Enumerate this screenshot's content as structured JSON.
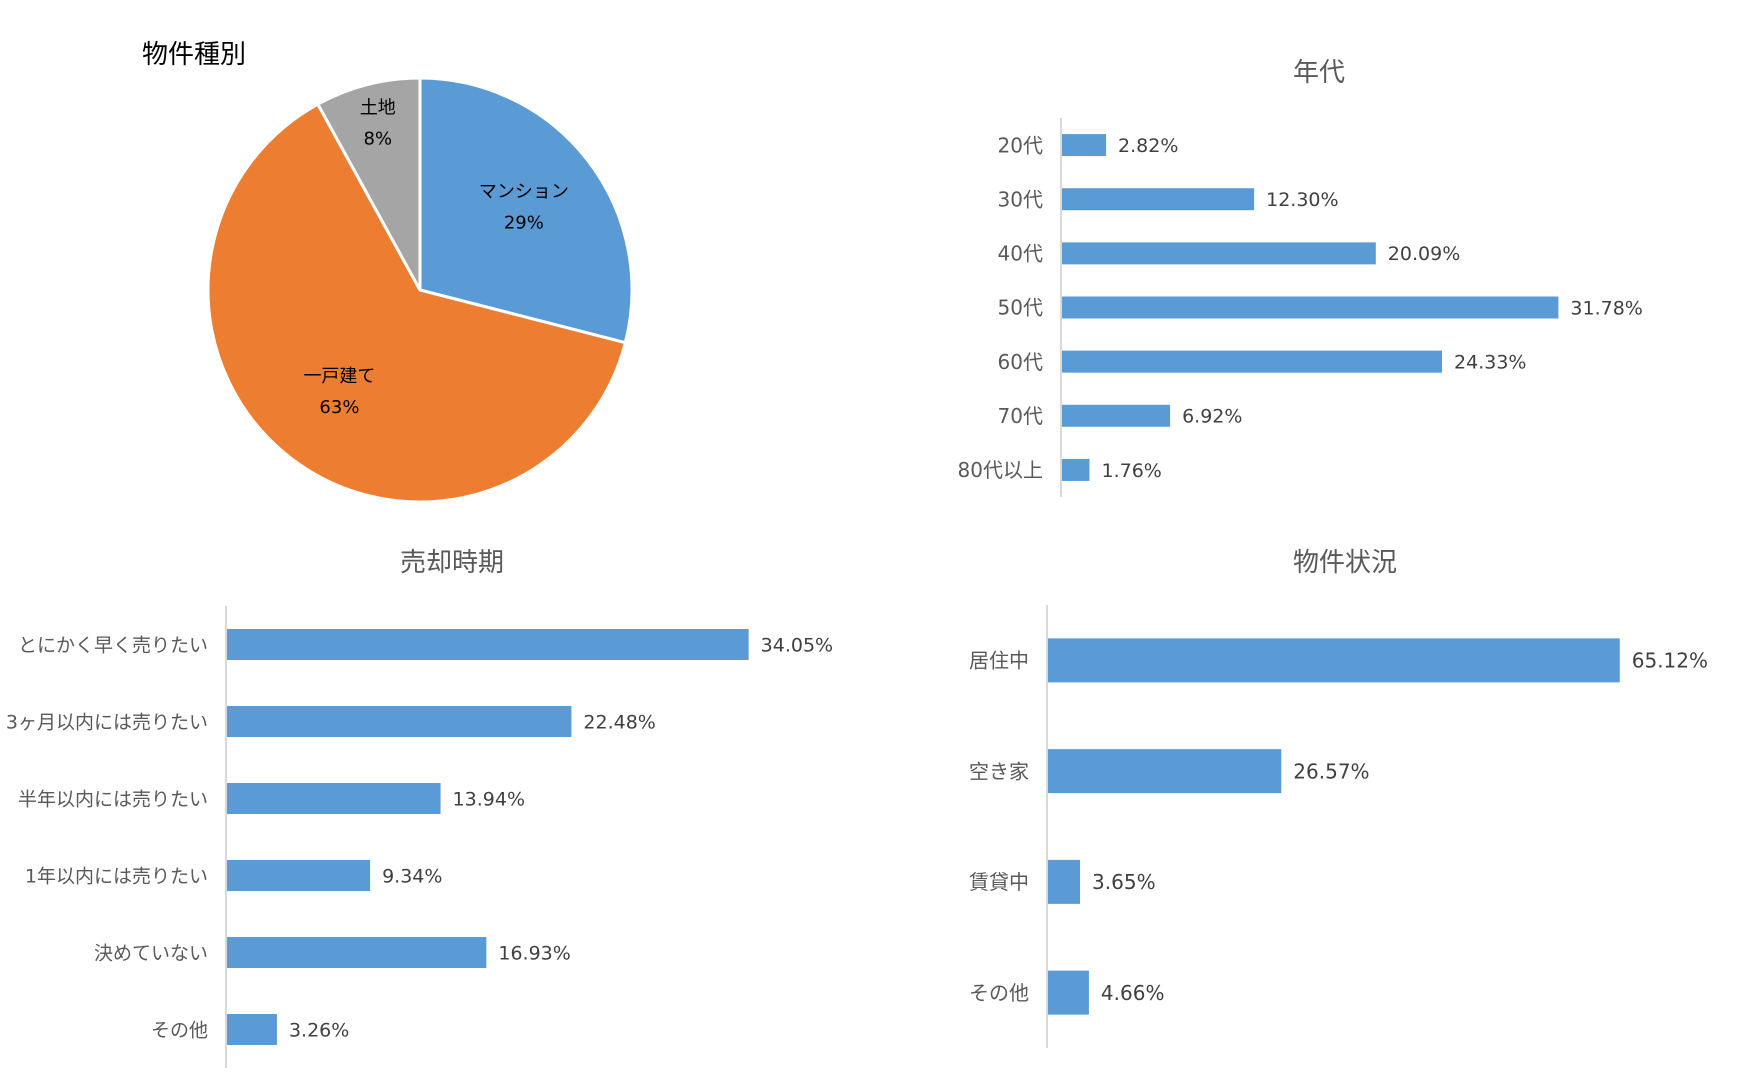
{
  "colors": {
    "bar": "#5b9bd5",
    "axis": "#d9d9d9",
    "label": "#595959",
    "value": "#404040",
    "pie": [
      "#5b9bd5",
      "#ed7d31",
      "#a5a5a5"
    ]
  },
  "chart_data": [
    {
      "type": "pie",
      "title": "物件種別",
      "slices": [
        {
          "label": "マンション",
          "value": 29,
          "value_text": "29%"
        },
        {
          "label": "一戸建て",
          "value": 63,
          "value_text": "63%"
        },
        {
          "label": "土地",
          "value": 8,
          "value_text": "8%"
        }
      ]
    },
    {
      "type": "bar",
      "orientation": "horizontal",
      "title": "年代",
      "categories": [
        "20代",
        "30代",
        "40代",
        "50代",
        "60代",
        "70代",
        "80代以上"
      ],
      "values": [
        2.82,
        12.3,
        20.09,
        31.78,
        24.33,
        6.92,
        1.76
      ],
      "value_labels": [
        "2.82%",
        "12.30%",
        "20.09%",
        "31.78%",
        "24.33%",
        "6.92%",
        "1.76%"
      ],
      "grid": false
    },
    {
      "type": "bar",
      "orientation": "horizontal",
      "title": "売却時期",
      "categories": [
        "とにかく早く売りたい",
        "3ヶ月以内には売りたい",
        "半年以内には売りたい",
        "1年以内には売りたい",
        "決めていない",
        "その他"
      ],
      "values": [
        34.05,
        22.48,
        13.94,
        9.34,
        16.93,
        3.26
      ],
      "value_labels": [
        "34.05%",
        "22.48%",
        "13.94%",
        "9.34%",
        "16.93%",
        "3.26%"
      ],
      "grid": false
    },
    {
      "type": "bar",
      "orientation": "horizontal",
      "title": "物件状況",
      "categories": [
        "居住中",
        "空き家",
        "賃貸中",
        "その他"
      ],
      "values": [
        65.12,
        26.57,
        3.65,
        4.66
      ],
      "value_labels": [
        "65.12%",
        "26.57%",
        "3.65%",
        "4.66%"
      ],
      "grid": false
    }
  ]
}
